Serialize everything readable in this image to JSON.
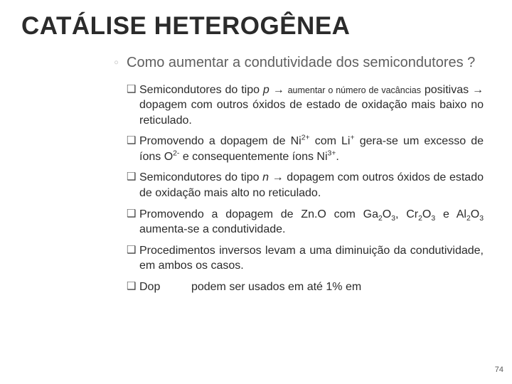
{
  "slide": {
    "title": "CATÁLISE HETEROGÊNEA",
    "page_number": "74",
    "level1": {
      "marker": "◦",
      "text": "Como aumentar a condutividade dos semicondutores ?"
    },
    "bullets": {
      "sq": "❑",
      "b1_prefix": "Semicondutores do tipo ",
      "b1_p": "p",
      "b1_arrow": " → ",
      "b1_small1": "aumentar o número de vacâncias",
      "b1_mid": " positivas → dopagem com outros óxidos de estado de oxidação mais baixo no reticulado.",
      "b2_a": "Promovendo a dopagem de Ni",
      "b2_b": " com Li",
      "b2_c": " gera-se um excesso de íons O",
      "b2_d": " e consequentemente íons Ni",
      "b2_e": ".",
      "b3_prefix": "Semicondutores do tipo ",
      "b3_n": "n",
      "b3_rest": " → dopagem com outros óxidos de estado de oxidação mais alto no reticulado.",
      "b4_a": "Promovendo a dopagem de Zn.O com Ga",
      "b4_b": "O",
      "b4_c": ", Cr",
      "b4_d": "O",
      "b4_e": " e Al",
      "b4_f": "O",
      "b4_g": " aumenta-se a condutividade.",
      "b5": "Procedimentos inversos levam a uma diminuição da condutividade, em ambos os casos.",
      "b6_visible": "Dop",
      "b6_rest": " podem ser usados em até 1% em"
    }
  },
  "style": {
    "title_color": "#2b2b2b",
    "body_color": "#2b2b2b",
    "muted_color": "#5f5f5f",
    "marker_color": "#c7c7c7",
    "bg": "#ffffff"
  }
}
